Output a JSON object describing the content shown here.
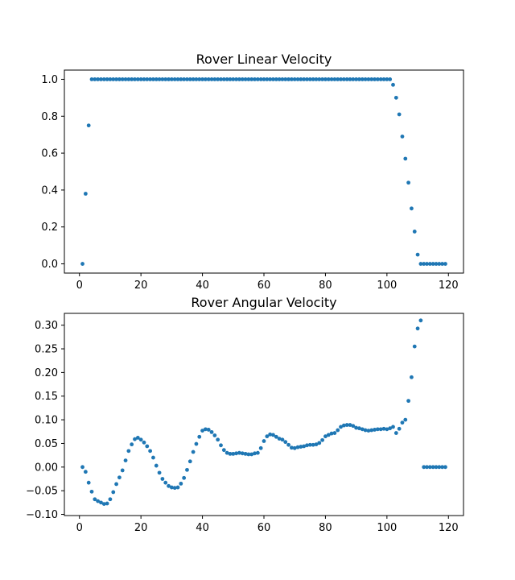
{
  "chart_data": [
    {
      "type": "scatter",
      "title": "Rover Linear Velocity",
      "xlabel": "",
      "ylabel": "",
      "xlim": [
        -4.9,
        124.9
      ],
      "ylim": [
        -0.05,
        1.05
      ],
      "xticks": [
        0,
        20,
        40,
        60,
        80,
        100,
        120
      ],
      "yticks": [
        0.0,
        0.2,
        0.4,
        0.6,
        0.8,
        1.0
      ],
      "xtick_labels": [
        "0",
        "20",
        "40",
        "60",
        "80",
        "100",
        "120"
      ],
      "ytick_labels": [
        "0.0",
        "0.2",
        "0.4",
        "0.6",
        "0.8",
        "1.0"
      ],
      "marker_color": "#1f77b4",
      "grid": false,
      "series": [
        {
          "x": [
            1,
            2,
            3,
            4,
            5,
            6,
            7,
            8,
            9,
            10,
            11,
            12,
            13,
            14,
            15,
            16,
            17,
            18,
            19,
            20,
            21,
            22,
            23,
            24,
            25,
            26,
            27,
            28,
            29,
            30,
            31,
            32,
            33,
            34,
            35,
            36,
            37,
            38,
            39,
            40,
            41,
            42,
            43,
            44,
            45,
            46,
            47,
            48,
            49,
            50,
            51,
            52,
            53,
            54,
            55,
            56,
            57,
            58,
            59,
            60,
            61,
            62,
            63,
            64,
            65,
            66,
            67,
            68,
            69,
            70,
            71,
            72,
            73,
            74,
            75,
            76,
            77,
            78,
            79,
            80,
            81,
            82,
            83,
            84,
            85,
            86,
            87,
            88,
            89,
            90,
            91,
            92,
            93,
            94,
            95,
            96,
            97,
            98,
            99,
            100,
            101,
            102,
            103,
            104,
            105,
            106,
            107,
            108,
            109,
            110,
            111,
            112,
            113,
            114,
            115,
            116,
            117,
            118,
            119
          ],
          "y": [
            0.0,
            0.38,
            0.75,
            1,
            1,
            1,
            1,
            1,
            1,
            1,
            1,
            1,
            1,
            1,
            1,
            1,
            1,
            1,
            1,
            1,
            1,
            1,
            1,
            1,
            1,
            1,
            1,
            1,
            1,
            1,
            1,
            1,
            1,
            1,
            1,
            1,
            1,
            1,
            1,
            1,
            1,
            1,
            1,
            1,
            1,
            1,
            1,
            1,
            1,
            1,
            1,
            1,
            1,
            1,
            1,
            1,
            1,
            1,
            1,
            1,
            1,
            1,
            1,
            1,
            1,
            1,
            1,
            1,
            1,
            1,
            1,
            1,
            1,
            1,
            1,
            1,
            1,
            1,
            1,
            1,
            1,
            1,
            1,
            1,
            1,
            1,
            1,
            1,
            1,
            1,
            1,
            1,
            1,
            1,
            1,
            1,
            1,
            1,
            1,
            1,
            1,
            0.97,
            0.9,
            0.81,
            0.69,
            0.57,
            0.44,
            0.3,
            0.175,
            0.05,
            0,
            0,
            0,
            0,
            0,
            0,
            0,
            0,
            0
          ]
        }
      ]
    },
    {
      "type": "scatter",
      "title": "Rover Angular Velocity",
      "xlabel": "",
      "ylabel": "",
      "xlim": [
        -4.9,
        124.9
      ],
      "ylim": [
        -0.1025,
        0.325
      ],
      "xticks": [
        0,
        20,
        40,
        60,
        80,
        100,
        120
      ],
      "yticks": [
        -0.1,
        -0.05,
        0.0,
        0.05,
        0.1,
        0.15,
        0.2,
        0.25,
        0.3
      ],
      "xtick_labels": [
        "0",
        "20",
        "40",
        "60",
        "80",
        "100",
        "120"
      ],
      "ytick_labels": [
        "−0.10",
        "−0.05",
        "0.00",
        "0.05",
        "0.10",
        "0.15",
        "0.20",
        "0.25",
        "0.30"
      ],
      "marker_color": "#1f77b4",
      "grid": false,
      "series": [
        {
          "x": [
            1,
            2,
            3,
            4,
            5,
            6,
            7,
            8,
            9,
            10,
            11,
            12,
            13,
            14,
            15,
            16,
            17,
            18,
            19,
            20,
            21,
            22,
            23,
            24,
            25,
            26,
            27,
            28,
            29,
            30,
            31,
            32,
            33,
            34,
            35,
            36,
            37,
            38,
            39,
            40,
            41,
            42,
            43,
            44,
            45,
            46,
            47,
            48,
            49,
            50,
            51,
            52,
            53,
            54,
            55,
            56,
            57,
            58,
            59,
            60,
            61,
            62,
            63,
            64,
            65,
            66,
            67,
            68,
            69,
            70,
            71,
            72,
            73,
            74,
            75,
            76,
            77,
            78,
            79,
            80,
            81,
            82,
            83,
            84,
            85,
            86,
            87,
            88,
            89,
            90,
            91,
            92,
            93,
            94,
            95,
            96,
            97,
            98,
            99,
            100,
            101,
            102,
            103,
            104,
            105,
            106,
            107,
            108,
            109,
            110,
            111,
            112,
            113,
            114,
            115,
            116,
            117,
            118,
            119
          ],
          "y": [
            0.0,
            -0.01,
            -0.033,
            -0.052,
            -0.068,
            -0.072,
            -0.075,
            -0.078,
            -0.077,
            -0.068,
            -0.053,
            -0.036,
            -0.022,
            -0.007,
            0.014,
            0.034,
            0.048,
            0.059,
            0.062,
            0.058,
            0.052,
            0.044,
            0.034,
            0.02,
            0.003,
            -0.012,
            -0.025,
            -0.033,
            -0.04,
            -0.043,
            -0.044,
            -0.043,
            -0.035,
            -0.023,
            -0.006,
            0.012,
            0.032,
            0.049,
            0.064,
            0.077,
            0.08,
            0.079,
            0.074,
            0.067,
            0.058,
            0.046,
            0.036,
            0.03,
            0.028,
            0.028,
            0.029,
            0.03,
            0.029,
            0.028,
            0.027,
            0.027,
            0.029,
            0.03,
            0.04,
            0.055,
            0.065,
            0.069,
            0.068,
            0.064,
            0.06,
            0.058,
            0.053,
            0.047,
            0.041,
            0.04,
            0.042,
            0.043,
            0.044,
            0.046,
            0.047,
            0.047,
            0.048,
            0.051,
            0.057,
            0.065,
            0.068,
            0.071,
            0.072,
            0.078,
            0.085,
            0.088,
            0.089,
            0.089,
            0.087,
            0.083,
            0.082,
            0.08,
            0.078,
            0.077,
            0.078,
            0.079,
            0.08,
            0.08,
            0.081,
            0.08,
            0.082,
            0.085,
            0.072,
            0.081,
            0.094,
            0.1,
            0.14,
            0.19,
            0.255,
            0.293,
            0.31,
            0,
            0,
            0,
            0,
            0,
            0,
            0,
            0
          ]
        }
      ]
    }
  ]
}
